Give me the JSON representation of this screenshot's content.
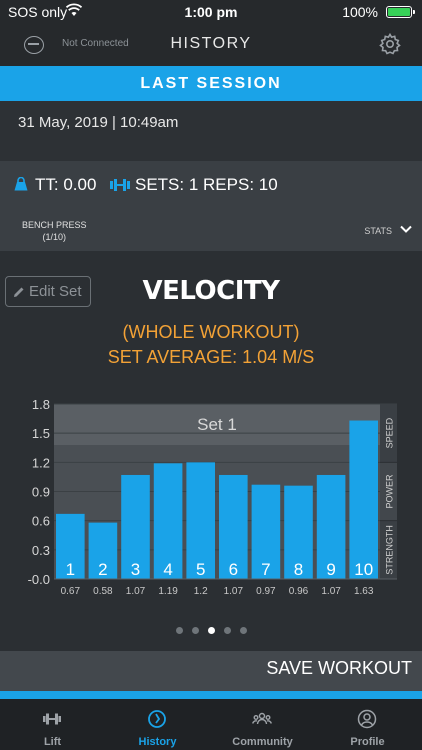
{
  "status_bar": {
    "carrier": "SOS only",
    "time": "1:00 pm",
    "battery": "100%"
  },
  "nav": {
    "connection": "Not Connected",
    "title": "HISTORY"
  },
  "banner": "LAST SESSION",
  "session": {
    "date": "31 May, 2019 | 10:49am",
    "tt": "TT: 0.00",
    "sets_reps": "SETS: 1  REPS: 10",
    "exercise": "BENCH PRESS",
    "exercise_count": "(1/10)",
    "stats_label": "STATS"
  },
  "card": {
    "edit_label": "Edit Set",
    "title": "VELOCITY",
    "subtitle_line1": "(WHOLE WORKOUT)",
    "subtitle_line2": "SET AVERAGE: 1.04 M/S"
  },
  "chart_data": {
    "type": "bar",
    "title": "Set 1",
    "categories": [
      "1",
      "2",
      "3",
      "4",
      "5",
      "6",
      "7",
      "8",
      "9",
      "10"
    ],
    "values": [
      0.67,
      0.58,
      1.07,
      1.19,
      1.2,
      1.07,
      0.97,
      0.96,
      1.07,
      1.63
    ],
    "value_labels": [
      "0.67",
      "0.58",
      "1.07",
      "1.19",
      "1.2",
      "1.07",
      "0.97",
      "0.96",
      "1.07",
      "1.63"
    ],
    "y_ticks": [
      "-0.0",
      "0.3",
      "0.6",
      "0.9",
      "1.2",
      "1.5",
      "1.8"
    ],
    "ylim": [
      0,
      1.8
    ],
    "zones": [
      {
        "label": "STRENGTH",
        "from": 0,
        "to": 0.6
      },
      {
        "label": "POWER",
        "from": 0.6,
        "to": 1.2
      },
      {
        "label": "SPEED",
        "from": 1.2,
        "to": 1.8
      }
    ],
    "bar_color": "#1aa3e8",
    "grid": true
  },
  "pager": {
    "count": 5,
    "active": 2
  },
  "save_label": "SAVE WORKOUT",
  "tabs": [
    {
      "label": "Lift",
      "icon": "dumbbell-icon",
      "active": false
    },
    {
      "label": "History",
      "icon": "history-icon",
      "active": true
    },
    {
      "label": "Community",
      "icon": "community-icon",
      "active": false
    },
    {
      "label": "Profile",
      "icon": "profile-icon",
      "active": false
    }
  ],
  "colors": {
    "accent": "#1aa3e8",
    "highlight": "#f3a236",
    "battery": "#37d158"
  }
}
